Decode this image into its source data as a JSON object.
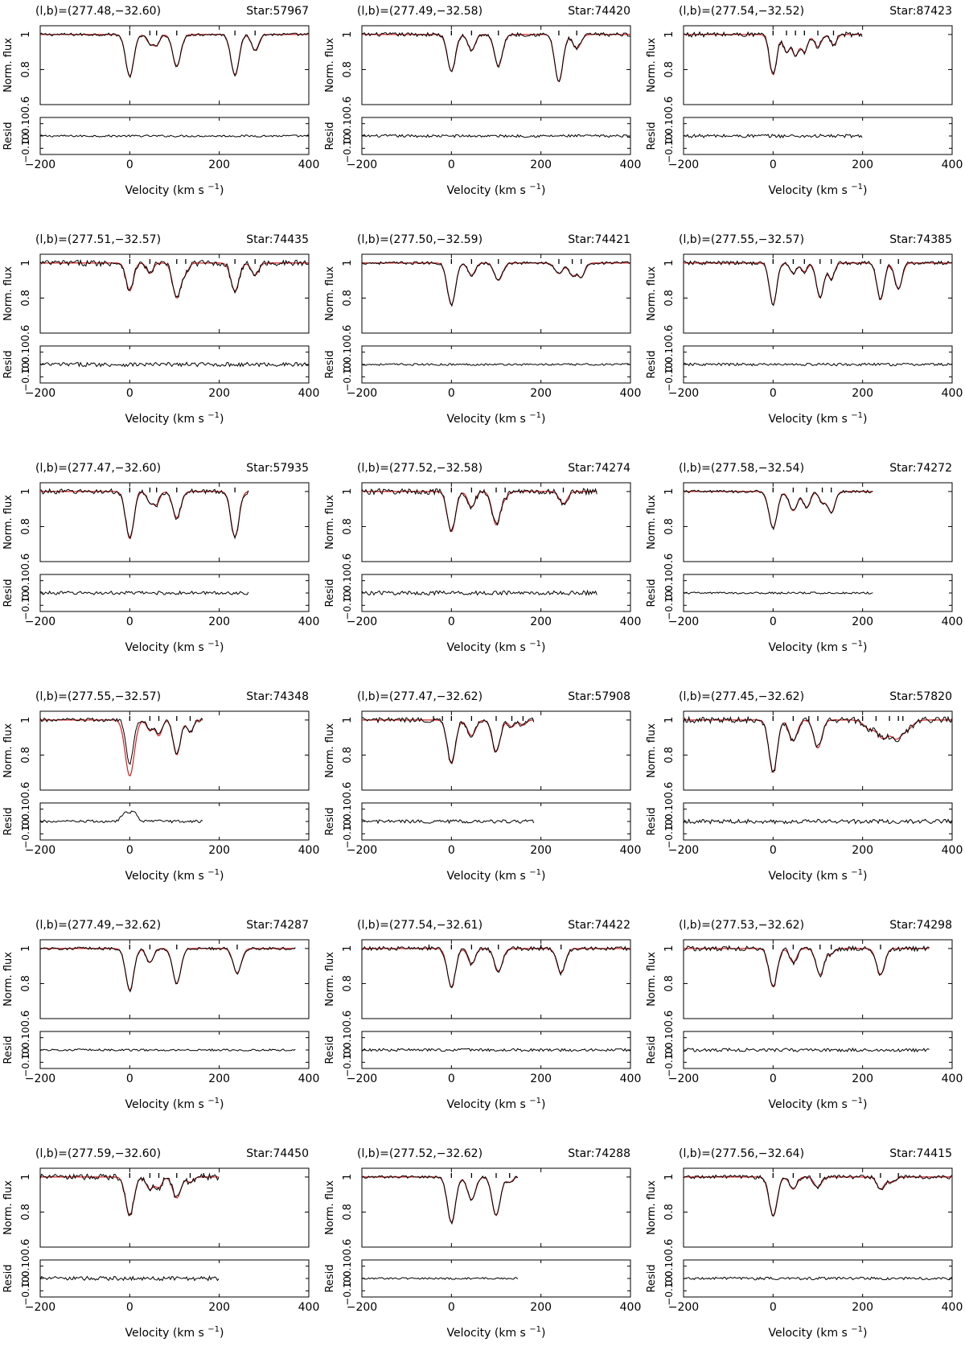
{
  "figure": {
    "x_label_main": "Velocity",
    "x_label_unit": "(km s",
    "x_label_exp": "−1",
    "x_label_close": ")",
    "y_label_top": "Norm. flux",
    "y_label_bottom": "Resid",
    "x_ticks": [
      "−200",
      "0",
      "200",
      "400"
    ],
    "y_ticks_top": [
      "0.6",
      "0.8",
      "1"
    ],
    "y_ticks_bottom": [
      "−0.10",
      "0.0",
      "0.10"
    ],
    "colors": {
      "data": "#000000",
      "model": "#d42020"
    }
  },
  "chart_data": [
    {
      "type": "line",
      "coord": "(l,b)=(277.48,−32.60)",
      "star": "Star:57967",
      "xlim": [
        -200,
        400
      ],
      "ylim": [
        0.6,
        1.05
      ],
      "vmax": 400,
      "components": [
        0,
        45,
        60,
        105,
        235,
        280
      ],
      "series": [
        {
          "name": "data"
        },
        {
          "name": "model"
        }
      ],
      "absorption": [
        [
          0,
          0.24,
          9
        ],
        [
          45,
          0.05,
          7
        ],
        [
          60,
          0.06,
          7
        ],
        [
          105,
          0.18,
          9
        ],
        [
          235,
          0.23,
          9
        ],
        [
          280,
          0.09,
          8
        ]
      ]
    },
    {
      "type": "line",
      "coord": "(l,b)=(277.49,−32.58)",
      "star": "Star:74420",
      "xlim": [
        -200,
        400
      ],
      "ylim": [
        0.6,
        1.05
      ],
      "vmax": 400,
      "components": [
        0,
        45,
        105,
        240,
        280
      ],
      "series": [
        {
          "name": "data"
        },
        {
          "name": "model"
        }
      ],
      "absorption": [
        [
          0,
          0.21,
          9
        ],
        [
          45,
          0.09,
          8
        ],
        [
          105,
          0.18,
          9
        ],
        [
          240,
          0.27,
          9
        ],
        [
          280,
          0.08,
          9
        ]
      ]
    },
    {
      "type": "line",
      "coord": "(l,b)=(277.54,−32.52)",
      "star": "Star:87423",
      "xlim": [
        -200,
        400
      ],
      "ylim": [
        0.6,
        1.05
      ],
      "vmax": 200,
      "components": [
        0,
        30,
        50,
        70,
        100,
        135
      ],
      "series": [
        {
          "name": "data"
        },
        {
          "name": "model"
        }
      ],
      "absorption": [
        [
          0,
          0.23,
          8
        ],
        [
          30,
          0.1,
          7
        ],
        [
          50,
          0.12,
          7
        ],
        [
          70,
          0.1,
          7
        ],
        [
          100,
          0.07,
          8
        ],
        [
          135,
          0.06,
          7
        ]
      ]
    },
    {
      "type": "line",
      "coord": "(l,b)=(277.51,−32.57)",
      "star": "Star:74435",
      "xlim": [
        -200,
        400
      ],
      "ylim": [
        0.6,
        1.05
      ],
      "vmax": 400,
      "components": [
        0,
        45,
        105,
        125,
        235,
        280
      ],
      "series": [
        {
          "name": "data"
        },
        {
          "name": "model"
        }
      ],
      "absorption": [
        [
          0,
          0.16,
          8
        ],
        [
          45,
          0.06,
          7
        ],
        [
          105,
          0.2,
          9
        ],
        [
          125,
          0.05,
          7
        ],
        [
          235,
          0.16,
          9
        ],
        [
          280,
          0.07,
          8
        ]
      ]
    },
    {
      "type": "line",
      "coord": "(l,b)=(277.50,−32.59)",
      "star": "Star:74421",
      "xlim": [
        -200,
        400
      ],
      "ylim": [
        0.6,
        1.05
      ],
      "vmax": 400,
      "components": [
        0,
        45,
        105,
        240,
        270,
        290
      ],
      "series": [
        {
          "name": "data"
        },
        {
          "name": "model"
        }
      ],
      "absorption": [
        [
          0,
          0.24,
          9
        ],
        [
          45,
          0.07,
          8
        ],
        [
          105,
          0.1,
          9
        ],
        [
          240,
          0.06,
          9
        ],
        [
          270,
          0.07,
          8
        ],
        [
          290,
          0.08,
          8
        ]
      ]
    },
    {
      "type": "line",
      "coord": "(l,b)=(277.55,−32.57)",
      "star": "Star:74385",
      "xlim": [
        -200,
        400
      ],
      "ylim": [
        0.6,
        1.05
      ],
      "vmax": 400,
      "components": [
        0,
        45,
        70,
        105,
        130,
        240,
        280
      ],
      "series": [
        {
          "name": "data"
        },
        {
          "name": "model"
        }
      ],
      "absorption": [
        [
          0,
          0.24,
          8
        ],
        [
          45,
          0.06,
          7
        ],
        [
          70,
          0.05,
          7
        ],
        [
          105,
          0.2,
          8
        ],
        [
          130,
          0.09,
          7
        ],
        [
          240,
          0.21,
          8
        ],
        [
          280,
          0.15,
          8
        ]
      ]
    },
    {
      "type": "line",
      "coord": "(l,b)=(277.47,−32.60)",
      "star": "Star:57935",
      "xlim": [
        -200,
        400
      ],
      "ylim": [
        0.6,
        1.05
      ],
      "vmax": 265,
      "components": [
        0,
        45,
        60,
        105,
        235
      ],
      "series": [
        {
          "name": "data"
        },
        {
          "name": "model"
        }
      ],
      "absorption": [
        [
          0,
          0.27,
          9
        ],
        [
          45,
          0.06,
          7
        ],
        [
          60,
          0.07,
          7
        ],
        [
          105,
          0.15,
          9
        ],
        [
          235,
          0.26,
          9
        ]
      ]
    },
    {
      "type": "line",
      "coord": "(l,b)=(277.52,−32.58)",
      "star": "Star:74274",
      "xlim": [
        -200,
        400
      ],
      "ylim": [
        0.6,
        1.05
      ],
      "vmax": 325,
      "components": [
        0,
        45,
        100,
        120,
        250
      ],
      "series": [
        {
          "name": "data"
        },
        {
          "name": "model"
        }
      ],
      "absorption": [
        [
          0,
          0.23,
          9
        ],
        [
          45,
          0.09,
          8
        ],
        [
          100,
          0.19,
          9
        ],
        [
          120,
          0.03,
          7
        ],
        [
          250,
          0.07,
          9
        ]
      ]
    },
    {
      "type": "line",
      "coord": "(l,b)=(277.58,−32.54)",
      "star": "Star:74272",
      "xlim": [
        -200,
        400
      ],
      "ylim": [
        0.6,
        1.05
      ],
      "vmax": 225,
      "components": [
        0,
        45,
        75,
        110,
        130
      ],
      "series": [
        {
          "name": "data"
        },
        {
          "name": "model"
        }
      ],
      "absorption": [
        [
          0,
          0.21,
          9
        ],
        [
          45,
          0.11,
          9
        ],
        [
          75,
          0.09,
          8
        ],
        [
          110,
          0.06,
          7
        ],
        [
          130,
          0.12,
          8
        ]
      ]
    },
    {
      "type": "line",
      "coord": "(l,b)=(277.55,−32.57)",
      "star": "Star:74348",
      "xlim": [
        -200,
        400
      ],
      "ylim": [
        0.6,
        1.05
      ],
      "vmax": 165,
      "components": [
        0,
        45,
        65,
        105,
        135
      ],
      "series": [
        {
          "name": "data"
        },
        {
          "name": "model"
        }
      ],
      "absorption": [
        [
          0,
          0.25,
          8
        ],
        [
          45,
          0.05,
          7
        ],
        [
          65,
          0.08,
          7
        ],
        [
          105,
          0.2,
          8
        ],
        [
          135,
          0.07,
          7
        ]
      ],
      "model_absorption": [
        [
          0,
          0.32,
          10
        ],
        [
          45,
          0.06,
          7
        ],
        [
          65,
          0.09,
          7
        ],
        [
          105,
          0.2,
          8
        ],
        [
          135,
          0.07,
          7
        ]
      ]
    },
    {
      "type": "line",
      "coord": "(l,b)=(277.47,−32.62)",
      "star": "Star:57908",
      "xlim": [
        -200,
        400
      ],
      "ylim": [
        0.6,
        1.05
      ],
      "vmax": 185,
      "components": [
        -40,
        -20,
        0,
        45,
        100,
        135,
        160
      ],
      "series": [
        {
          "name": "data"
        },
        {
          "name": "model"
        }
      ],
      "absorption": [
        [
          0,
          0.25,
          9
        ],
        [
          45,
          0.09,
          9
        ],
        [
          100,
          0.18,
          9
        ],
        [
          135,
          0.04,
          7
        ],
        [
          160,
          0.03,
          7
        ]
      ]
    },
    {
      "type": "line",
      "coord": "(l,b)=(277.45,−32.62)",
      "star": "Star:57820",
      "xlim": [
        -200,
        400
      ],
      "ylim": [
        0.6,
        1.05
      ],
      "vmax": 400,
      "components": [
        0,
        45,
        80,
        100,
        200,
        230,
        260,
        280,
        290
      ],
      "series": [
        {
          "name": "data"
        },
        {
          "name": "model"
        }
      ],
      "absorption": [
        [
          0,
          0.3,
          9
        ],
        [
          45,
          0.12,
          9
        ],
        [
          100,
          0.16,
          9
        ],
        [
          215,
          0.05,
          12
        ],
        [
          245,
          0.1,
          12
        ],
        [
          275,
          0.1,
          12
        ],
        [
          300,
          0.05,
          12
        ]
      ]
    },
    {
      "type": "line",
      "coord": "(l,b)=(277.49,−32.62)",
      "star": "Star:74287",
      "xlim": [
        -200,
        400
      ],
      "ylim": [
        0.6,
        1.05
      ],
      "vmax": 370,
      "components": [
        0,
        45,
        105,
        240
      ],
      "series": [
        {
          "name": "data"
        },
        {
          "name": "model"
        }
      ],
      "absorption": [
        [
          0,
          0.24,
          9
        ],
        [
          45,
          0.08,
          8
        ],
        [
          105,
          0.2,
          9
        ],
        [
          240,
          0.14,
          9
        ]
      ]
    },
    {
      "type": "line",
      "coord": "(l,b)=(277.54,−32.61)",
      "star": "Star:74422",
      "xlim": [
        -200,
        400
      ],
      "ylim": [
        0.6,
        1.05
      ],
      "vmax": 400,
      "components": [
        -50,
        0,
        45,
        105,
        200,
        245
      ],
      "series": [
        {
          "name": "data"
        },
        {
          "name": "model"
        }
      ],
      "absorption": [
        [
          0,
          0.22,
          9
        ],
        [
          45,
          0.09,
          8
        ],
        [
          105,
          0.13,
          9
        ],
        [
          245,
          0.14,
          9
        ]
      ]
    },
    {
      "type": "line",
      "coord": "(l,b)=(277.53,−32.62)",
      "star": "Star:74298",
      "xlim": [
        -200,
        400
      ],
      "ylim": [
        0.6,
        1.05
      ],
      "vmax": 350,
      "components": [
        0,
        45,
        105,
        130,
        240
      ],
      "series": [
        {
          "name": "data"
        },
        {
          "name": "model"
        }
      ],
      "absorption": [
        [
          0,
          0.22,
          9
        ],
        [
          45,
          0.08,
          8
        ],
        [
          105,
          0.15,
          9
        ],
        [
          130,
          0.03,
          7
        ],
        [
          240,
          0.15,
          9
        ]
      ]
    },
    {
      "type": "line",
      "coord": "(l,b)=(277.59,−32.60)",
      "star": "Star:74450",
      "xlim": [
        -200,
        400
      ],
      "ylim": [
        0.6,
        1.05
      ],
      "vmax": 200,
      "components": [
        0,
        45,
        65,
        105,
        135,
        165
      ],
      "series": [
        {
          "name": "data"
        },
        {
          "name": "model"
        }
      ],
      "absorption": [
        [
          0,
          0.22,
          9
        ],
        [
          45,
          0.07,
          8
        ],
        [
          65,
          0.06,
          7
        ],
        [
          105,
          0.12,
          9
        ],
        [
          135,
          0.03,
          7
        ]
      ]
    },
    {
      "type": "line",
      "coord": "(l,b)=(277.52,−32.62)",
      "star": "Star:74288",
      "xlim": [
        -200,
        400
      ],
      "ylim": [
        0.6,
        1.05
      ],
      "vmax": 150,
      "components": [
        0,
        45,
        100,
        130
      ],
      "series": [
        {
          "name": "data"
        },
        {
          "name": "model"
        }
      ],
      "absorption": [
        [
          0,
          0.26,
          9
        ],
        [
          45,
          0.13,
          9
        ],
        [
          100,
          0.22,
          9
        ],
        [
          130,
          0.03,
          7
        ]
      ]
    },
    {
      "type": "line",
      "coord": "(l,b)=(277.56,−32.64)",
      "star": "Star:74415",
      "xlim": [
        -200,
        400
      ],
      "ylim": [
        0.6,
        1.05
      ],
      "vmax": 400,
      "components": [
        0,
        45,
        105,
        240,
        280
      ],
      "series": [
        {
          "name": "data"
        },
        {
          "name": "model"
        }
      ],
      "absorption": [
        [
          0,
          0.22,
          9
        ],
        [
          45,
          0.07,
          8
        ],
        [
          100,
          0.06,
          8
        ],
        [
          240,
          0.07,
          8
        ],
        [
          265,
          0.03,
          9
        ]
      ]
    }
  ]
}
